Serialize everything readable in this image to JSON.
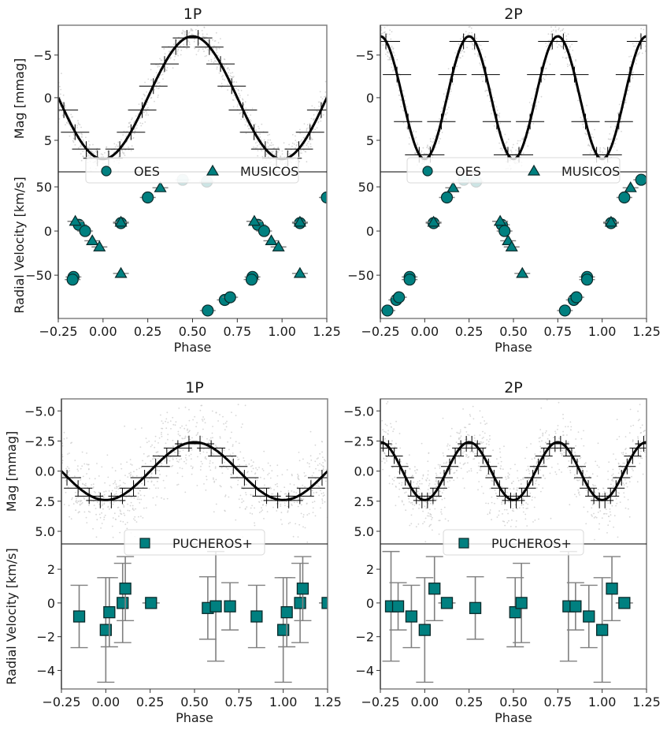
{
  "chart_data": [
    {
      "id": "top-left",
      "type": "scatter",
      "title": "1P",
      "xlabel": "Phase",
      "xlim": [
        -0.25,
        1.25
      ],
      "xticks": [
        "-0.25",
        "0.00",
        "0.25",
        "0.50",
        "0.75",
        "1.00",
        "1.25"
      ],
      "mag": {
        "ylabel": "Mag [mmag]",
        "ylim": [
          8.7,
          -8.5
        ],
        "yticks": [
          -5,
          0,
          5
        ],
        "ytick_labels": [
          "−5",
          "0",
          "5"
        ],
        "model": {
          "mean": 0.0,
          "amplitude": 7.2,
          "cycles": 1,
          "peak_phase": 0.5
        },
        "binned_step": 0.0625,
        "scatter_noise": 0.8
      },
      "rv": {
        "ylabel": "Radial Velocity [km/s]",
        "ylim": [
          -99,
          67
        ],
        "yticks": [
          50,
          0,
          -50
        ],
        "ytick_labels": [
          "50",
          "0",
          "−50"
        ],
        "legend": [
          {
            "label": "OES",
            "marker": "circle"
          },
          {
            "label": "MUSICOS",
            "marker": "triangle"
          }
        ],
        "series": [
          {
            "name": "OES",
            "marker": "circle",
            "points": [
              [
                -0.165,
                -52
              ],
              [
                -0.17,
                -55
              ],
              [
                -0.135,
                7
              ],
              [
                -0.1,
                0
              ],
              [
                0.1,
                9
              ],
              [
                0.25,
                38
              ],
              [
                0.445,
                58,
                "faded"
              ],
              [
                0.58,
                56,
                "faded"
              ],
              [
                0.585,
                -90
              ],
              [
                0.68,
                -78
              ],
              [
                0.71,
                -75
              ],
              [
                0.835,
                -52
              ],
              [
                0.83,
                -55
              ],
              [
                0.865,
                7
              ],
              [
                0.9,
                0
              ],
              [
                1.1,
                9
              ],
              [
                1.25,
                38
              ]
            ]
          },
          {
            "name": "MUSICOS",
            "marker": "triangle",
            "points": [
              [
                -0.155,
                11
              ],
              [
                -0.06,
                -11
              ],
              [
                -0.02,
                -18
              ],
              [
                0.1,
                10
              ],
              [
                0.1,
                -48
              ],
              [
                0.32,
                49
              ],
              [
                0.845,
                11
              ],
              [
                0.94,
                -11
              ],
              [
                0.98,
                -18
              ],
              [
                1.1,
                10
              ],
              [
                1.1,
                -48
              ]
            ]
          }
        ]
      }
    },
    {
      "id": "top-right",
      "type": "scatter",
      "title": "2P",
      "xlabel": "Phase",
      "xlim": [
        -0.25,
        1.25
      ],
      "xticks": [
        "-0.25",
        "0.00",
        "0.25",
        "0.50",
        "0.75",
        "1.00",
        "1.25"
      ],
      "mag": {
        "ylabel": "",
        "ylim": [
          8.7,
          -8.5
        ],
        "yticks": [
          -5,
          0,
          5
        ],
        "ytick_labels": [
          "−5",
          "0",
          "5"
        ],
        "model": {
          "mean": 0.0,
          "amplitude": 7.2,
          "cycles": 2,
          "peak_phase": 0.25
        },
        "binned_step": 0.0625,
        "scatter_noise": 0.8
      },
      "rv": {
        "ylabel": "",
        "ylim": [
          -99,
          67
        ],
        "yticks": [
          50,
          0,
          -50
        ],
        "ytick_labels": [
          "50",
          "0",
          "−50"
        ],
        "legend": [
          {
            "label": "OES",
            "marker": "circle"
          },
          {
            "label": "MUSICOS",
            "marker": "triangle"
          }
        ],
        "series": [
          {
            "name": "OES",
            "marker": "circle",
            "points": [
              [
                -0.21,
                -90
              ],
              [
                -0.16,
                -78
              ],
              [
                -0.145,
                -75
              ],
              [
                -0.085,
                -52
              ],
              [
                -0.085,
                -55
              ],
              [
                0.05,
                9
              ],
              [
                0.125,
                38
              ],
              [
                0.22,
                58,
                "faded"
              ],
              [
                0.29,
                56,
                "faded"
              ],
              [
                0.435,
                7
              ],
              [
                0.45,
                0
              ],
              [
                0.79,
                -90
              ],
              [
                0.84,
                -78
              ],
              [
                0.855,
                -75
              ],
              [
                0.915,
                -52
              ],
              [
                0.915,
                -55
              ],
              [
                1.05,
                9
              ],
              [
                1.125,
                38
              ],
              [
                1.22,
                58
              ]
            ]
          },
          {
            "name": "MUSICOS",
            "marker": "triangle",
            "points": [
              [
                0.05,
                10
              ],
              [
                0.16,
                49
              ],
              [
                0.425,
                11
              ],
              [
                0.47,
                -11
              ],
              [
                0.49,
                -18
              ],
              [
                0.55,
                -48
              ],
              [
                1.05,
                10
              ],
              [
                1.16,
                49
              ]
            ]
          }
        ]
      }
    },
    {
      "id": "bottom-left",
      "type": "scatter",
      "title": "1P",
      "xlabel": "Phase",
      "xlim": [
        -0.25,
        1.25
      ],
      "xticks": [
        "-0.25",
        "0.00",
        "0.25",
        "0.50",
        "0.75",
        "1.00",
        "1.25"
      ],
      "mag": {
        "ylabel": "Mag [mmag]",
        "ylim": [
          6.05,
          -6.0
        ],
        "yticks": [
          -5.0,
          -2.5,
          0.0,
          2.5,
          5.0
        ],
        "ytick_labels": [
          "−5.0",
          "−2.5",
          "0.0",
          "2.5",
          "5.0"
        ],
        "model": {
          "mean": 0.0,
          "amplitude": 2.4,
          "cycles": 1,
          "peak_phase": 0.5
        },
        "binned_step": 0.0625,
        "scatter_noise": 1.4
      },
      "rv": {
        "ylabel": "Radial Velocity [km/s]",
        "ylim": [
          -5.1,
          3.5
        ],
        "yticks": [
          2,
          0,
          -2,
          -4
        ],
        "ytick_labels": [
          "2",
          "0",
          "−2",
          "−4"
        ],
        "legend": [
          {
            "label": "PUCHEROS+",
            "marker": "square"
          }
        ],
        "series": [
          {
            "name": "PUCHEROS+",
            "marker": "square",
            "points": [
              [
                -0.15,
                -0.8,
                1.85
              ],
              [
                0.0,
                -1.6,
                3.1
              ],
              [
                0.02,
                -0.55,
                2.05
              ],
              [
                0.095,
                0.0,
                2.35
              ],
              [
                0.11,
                0.85,
                1.9
              ],
              [
                0.255,
                0.0,
                0.0
              ],
              [
                0.575,
                -0.3,
                1.85
              ],
              [
                0.62,
                -0.2,
                3.25
              ],
              [
                0.7,
                -0.2,
                1.4
              ],
              [
                0.85,
                -0.8,
                1.85
              ],
              [
                1.0,
                -1.6,
                3.1
              ],
              [
                1.02,
                -0.55,
                2.05
              ],
              [
                1.095,
                0.0,
                2.35
              ],
              [
                1.11,
                0.85,
                1.9
              ],
              [
                1.25,
                0.0,
                0.0
              ]
            ]
          }
        ]
      }
    },
    {
      "id": "bottom-right",
      "type": "scatter",
      "title": "2P",
      "xlabel": "Phase",
      "xlim": [
        -0.25,
        1.25
      ],
      "xticks": [
        "-0.25",
        "0.00",
        "0.25",
        "0.50",
        "0.75",
        "1.00",
        "1.25"
      ],
      "mag": {
        "ylabel": "",
        "ylim": [
          6.05,
          -6.0
        ],
        "yticks": [
          -5.0,
          -2.5,
          0.0,
          2.5,
          5.0
        ],
        "ytick_labels": [
          "−5.0",
          "−2.5",
          "0.0",
          "2.5",
          "5.0"
        ],
        "model": {
          "mean": 0.0,
          "amplitude": 2.4,
          "cycles": 2,
          "peak_phase": 0.25
        },
        "binned_step": 0.03125,
        "scatter_noise": 1.4
      },
      "rv": {
        "ylabel": "",
        "ylim": [
          -5.1,
          3.5
        ],
        "yticks": [
          2,
          0,
          -2,
          -4
        ],
        "ytick_labels": [
          "2",
          "0",
          "−2",
          "−4"
        ],
        "legend": [
          {
            "label": "PUCHEROS+",
            "marker": "square"
          }
        ],
        "series": [
          {
            "name": "PUCHEROS+",
            "marker": "square",
            "points": [
              [
                -0.19,
                -0.2,
                3.25
              ],
              [
                -0.15,
                -0.2,
                1.4
              ],
              [
                -0.075,
                -0.8,
                1.85
              ],
              [
                0.0,
                -1.6,
                3.1
              ],
              [
                0.055,
                0.85,
                1.9
              ],
              [
                0.125,
                0.0,
                0.0
              ],
              [
                0.285,
                -0.3,
                1.85
              ],
              [
                0.51,
                -0.55,
                2.05
              ],
              [
                0.545,
                0.0,
                2.35
              ],
              [
                0.81,
                -0.2,
                3.25
              ],
              [
                0.85,
                -0.2,
                1.4
              ],
              [
                0.925,
                -0.8,
                1.85
              ],
              [
                1.0,
                -1.6,
                3.1
              ],
              [
                1.055,
                0.85,
                1.9
              ],
              [
                1.125,
                0.0,
                0.0
              ]
            ]
          }
        ]
      }
    }
  ],
  "colors": {
    "marker_fill": "#008080",
    "marker_edge": "#0a2a2a",
    "model_line": "#000000",
    "binned": "#000000",
    "scatter": "#cccccc",
    "errorbar": "#808080",
    "frame": "#808080"
  }
}
